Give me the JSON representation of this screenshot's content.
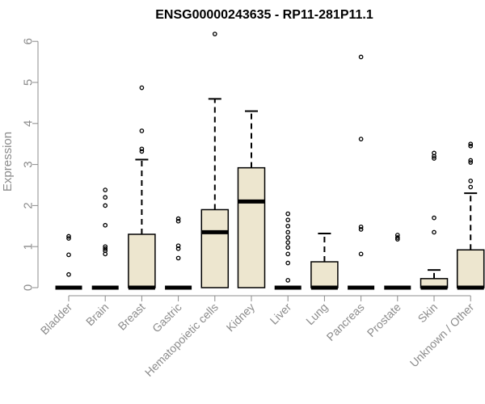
{
  "chart_data": {
    "type": "box",
    "title": "ENSG00000243635 - RP11-281P11.1",
    "xlabel": "",
    "ylabel": "Expression",
    "ylim": [
      0,
      6.2
    ],
    "yticks": [
      0,
      1,
      2,
      3,
      4,
      5,
      6
    ],
    "box_color": "#ede6cf",
    "line_color": "#000000",
    "axis_color": "#8c8c8c",
    "categories": [
      "Bladder",
      "Brain",
      "Breast",
      "Gastric",
      "Hematopoietic cells",
      "Kidney",
      "Liver",
      "Lung",
      "Pancreas",
      "Prostate",
      "Skin",
      "Unknown / Other"
    ],
    "boxes": [
      {
        "category": "Bladder",
        "q1": 0,
        "median": 0,
        "q3": 0,
        "whisker_low": 0,
        "whisker_high": 0,
        "outliers": [
          1.25,
          1.2,
          0.8,
          0.32
        ]
      },
      {
        "category": "Brain",
        "q1": 0,
        "median": 0,
        "q3": 0,
        "whisker_low": 0,
        "whisker_high": 0,
        "outliers": [
          2.38,
          2.2,
          2.0,
          1.52,
          1.0,
          0.95,
          0.9,
          0.82
        ]
      },
      {
        "category": "Breast",
        "q1": 0,
        "median": 0,
        "q3": 1.3,
        "whisker_low": 0,
        "whisker_high": 3.12,
        "outliers": [
          4.87,
          3.82,
          3.38,
          3.32
        ]
      },
      {
        "category": "Gastric",
        "q1": 0,
        "median": 0,
        "q3": 0,
        "whisker_low": 0,
        "whisker_high": 0,
        "outliers": [
          1.68,
          1.62,
          1.02,
          0.95,
          0.72
        ]
      },
      {
        "category": "Hematopoietic cells",
        "q1": 0,
        "median": 1.35,
        "q3": 1.9,
        "whisker_low": 0,
        "whisker_high": 4.6,
        "outliers": [
          6.18
        ]
      },
      {
        "category": "Kidney",
        "q1": 0,
        "median": 2.1,
        "q3": 2.92,
        "whisker_low": 0,
        "whisker_high": 4.3,
        "outliers": []
      },
      {
        "category": "Liver",
        "q1": 0,
        "median": 0,
        "q3": 0,
        "whisker_low": 0,
        "whisker_high": 0,
        "outliers": [
          1.8,
          1.65,
          1.5,
          1.35,
          1.22,
          1.1,
          0.98,
          0.82,
          0.6,
          0.18
        ]
      },
      {
        "category": "Lung",
        "q1": 0,
        "median": 0,
        "q3": 0.63,
        "whisker_low": 0,
        "whisker_high": 1.32,
        "outliers": []
      },
      {
        "category": "Pancreas",
        "q1": 0,
        "median": 0,
        "q3": 0,
        "whisker_low": 0,
        "whisker_high": 0,
        "outliers": [
          5.62,
          3.62,
          1.48,
          1.42,
          0.82
        ]
      },
      {
        "category": "Prostate",
        "q1": 0,
        "median": 0,
        "q3": 0,
        "whisker_low": 0,
        "whisker_high": 0,
        "outliers": [
          1.28,
          1.22,
          1.18
        ]
      },
      {
        "category": "Skin",
        "q1": 0,
        "median": 0,
        "q3": 0.22,
        "whisker_low": 0,
        "whisker_high": 0.43,
        "outliers": [
          3.28,
          3.2,
          3.15,
          1.7,
          1.35
        ]
      },
      {
        "category": "Unknown / Other",
        "q1": 0,
        "median": 0,
        "q3": 0.92,
        "whisker_low": 0,
        "whisker_high": 2.3,
        "outliers": [
          3.5,
          3.45,
          3.1,
          3.05,
          2.6,
          2.45
        ]
      }
    ]
  }
}
